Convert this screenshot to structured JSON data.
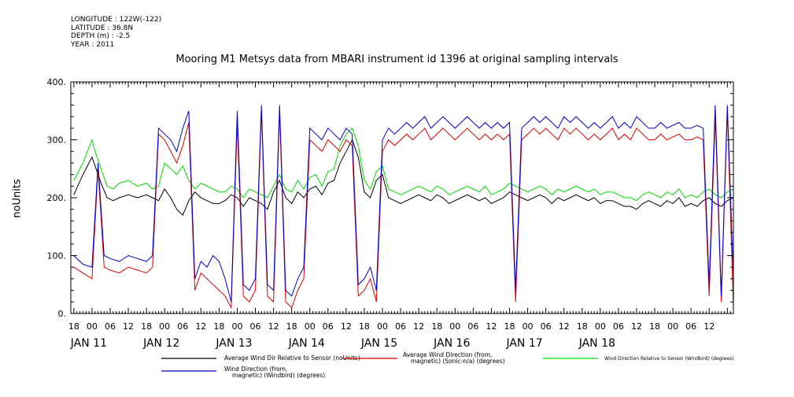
{
  "meta": {
    "longitude": "LONGITUDE : 122W(-122)",
    "latitude": "LATITUDE : 36.8N",
    "depth": "DEPTH (m) : -2.5",
    "year": "YEAR : 2011"
  },
  "colors": {
    "black": "#000000",
    "red": "#dd0000",
    "green": "#00dd00",
    "blue": "#0000cc"
  },
  "chart_data": {
    "type": "line",
    "title": "Mooring M1 Metsys data from MBARI instrument id 1396 at original sampling intervals",
    "xlabel": "",
    "ylabel": "noUnits",
    "ylim": [
      0,
      400
    ],
    "yticks": [
      "0.",
      "100.",
      "200.",
      "300.",
      "400."
    ],
    "x_unit": "hours from JAN 11 00:00",
    "xlim": [
      -7,
      212
    ],
    "hour_ticks": [
      "18",
      "00",
      "06",
      "12",
      "18",
      "00",
      "06",
      "12",
      "18",
      "00",
      "06",
      "12",
      "18",
      "00",
      "06",
      "12",
      "18",
      "00",
      "06",
      "12",
      "18",
      "00",
      "06",
      "12",
      "18",
      "00",
      "06",
      "12",
      "18",
      "00",
      "06",
      "12",
      "18",
      "00",
      "06",
      "12"
    ],
    "date_labels": [
      "JAN 11",
      "JAN 12",
      "JAN 13",
      "JAN 14",
      "JAN 15",
      "JAN 16",
      "JAN 17",
      "JAN 18"
    ],
    "grid": false,
    "legend_position": "bottom",
    "series": [
      {
        "name": "Average Wind Dir Relative to Sensor (noUnits)",
        "color": "#000000",
        "x": [
          -6,
          -3,
          0,
          1,
          3,
          5,
          7,
          9,
          12,
          15,
          18,
          20,
          22,
          24,
          26,
          28,
          30,
          32,
          34,
          36,
          38,
          40,
          42,
          44,
          46,
          48,
          50,
          52,
          54,
          56,
          58,
          60,
          62,
          64,
          66,
          68,
          70,
          72,
          74,
          76,
          78,
          80,
          82,
          84,
          86,
          88,
          90,
          92,
          94,
          96,
          98,
          100,
          102,
          104,
          106,
          108,
          110,
          112,
          114,
          116,
          118,
          120,
          122,
          124,
          126,
          128,
          130,
          132,
          134,
          136,
          138,
          140,
          142,
          144,
          146,
          148,
          150,
          152,
          154,
          156,
          158,
          160,
          162,
          164,
          166,
          168,
          170,
          172,
          174,
          176,
          178,
          180,
          182,
          184,
          186,
          188,
          190,
          192,
          194,
          196,
          198,
          200,
          202,
          204,
          206,
          208,
          210,
          212
        ],
        "y": [
          205,
          240,
          270,
          255,
          225,
          200,
          195,
          200,
          205,
          200,
          205,
          200,
          195,
          215,
          200,
          180,
          170,
          195,
          210,
          200,
          195,
          190,
          190,
          195,
          205,
          200,
          185,
          200,
          195,
          190,
          180,
          210,
          230,
          200,
          190,
          210,
          200,
          215,
          220,
          205,
          225,
          230,
          260,
          280,
          300,
          270,
          210,
          200,
          230,
          240,
          200,
          195,
          190,
          195,
          200,
          205,
          200,
          195,
          205,
          200,
          190,
          195,
          200,
          205,
          200,
          195,
          200,
          190,
          195,
          200,
          210,
          205,
          200,
          195,
          200,
          205,
          200,
          190,
          200,
          195,
          200,
          205,
          200,
          195,
          200,
          190,
          195,
          195,
          190,
          185,
          185,
          180,
          190,
          195,
          190,
          185,
          195,
          190,
          200,
          185,
          190,
          185,
          195,
          200,
          190,
          185,
          195,
          200
        ]
      },
      {
        "name": "Average Wind Direction (from, magnetic) (Sonic-n/a) (degrees)",
        "color": "#dd0000",
        "x": [
          -6,
          -3,
          0,
          2,
          4,
          6,
          9,
          12,
          15,
          18,
          20,
          22,
          24,
          26,
          28,
          30,
          32,
          34,
          36,
          38,
          40,
          42,
          44,
          46,
          48,
          50,
          52,
          54,
          56,
          58,
          60,
          62,
          64,
          66,
          68,
          70,
          72,
          74,
          76,
          78,
          80,
          82,
          84,
          86,
          88,
          90,
          92,
          94,
          96,
          98,
          100,
          102,
          104,
          106,
          108,
          110,
          112,
          114,
          116,
          118,
          120,
          122,
          124,
          126,
          128,
          130,
          132,
          134,
          136,
          138,
          140,
          142,
          144,
          146,
          148,
          150,
          152,
          154,
          156,
          158,
          160,
          162,
          164,
          166,
          168,
          170,
          172,
          174,
          176,
          178,
          180,
          182,
          184,
          186,
          188,
          190,
          192,
          194,
          196,
          198,
          200,
          202,
          204,
          206,
          208,
          210,
          212
        ],
        "y": [
          80,
          70,
          60,
          250,
          80,
          75,
          70,
          80,
          75,
          70,
          80,
          310,
          300,
          280,
          260,
          290,
          330,
          40,
          70,
          60,
          50,
          40,
          30,
          10,
          330,
          30,
          20,
          40,
          350,
          30,
          20,
          350,
          20,
          10,
          40,
          60,
          300,
          290,
          280,
          300,
          290,
          280,
          300,
          290,
          30,
          40,
          60,
          20,
          280,
          300,
          290,
          300,
          310,
          300,
          310,
          320,
          300,
          310,
          320,
          310,
          300,
          310,
          320,
          310,
          300,
          310,
          300,
          310,
          300,
          310,
          20,
          300,
          310,
          320,
          310,
          320,
          310,
          300,
          320,
          310,
          320,
          310,
          300,
          310,
          300,
          310,
          320,
          300,
          310,
          300,
          320,
          310,
          300,
          300,
          310,
          300,
          305,
          310,
          300,
          300,
          305,
          300,
          30,
          340,
          20,
          350,
          10
        ]
      },
      {
        "name": "Wind Direction Relative to Sensor (Windbird) (degrees)",
        "color": "#00dd00",
        "x": [
          -6,
          -3,
          0,
          1,
          3,
          5,
          7,
          9,
          12,
          15,
          18,
          20,
          22,
          24,
          26,
          28,
          30,
          32,
          34,
          36,
          38,
          40,
          42,
          44,
          46,
          48,
          50,
          52,
          54,
          56,
          58,
          60,
          62,
          64,
          66,
          68,
          70,
          72,
          74,
          76,
          78,
          80,
          82,
          84,
          86,
          88,
          90,
          92,
          94,
          96,
          98,
          100,
          102,
          104,
          106,
          108,
          110,
          112,
          114,
          116,
          118,
          120,
          122,
          124,
          126,
          128,
          130,
          132,
          134,
          136,
          138,
          140,
          142,
          144,
          146,
          148,
          150,
          152,
          154,
          156,
          158,
          160,
          162,
          164,
          166,
          168,
          170,
          172,
          174,
          176,
          178,
          180,
          182,
          184,
          186,
          188,
          190,
          192,
          194,
          196,
          198,
          200,
          202,
          204,
          206,
          208,
          210,
          212
        ],
        "y": [
          230,
          260,
          300,
          280,
          250,
          220,
          215,
          225,
          230,
          220,
          225,
          215,
          220,
          260,
          250,
          240,
          255,
          230,
          215,
          225,
          220,
          215,
          210,
          210,
          220,
          215,
          200,
          215,
          210,
          205,
          200,
          220,
          240,
          215,
          210,
          230,
          215,
          235,
          240,
          220,
          245,
          250,
          290,
          310,
          320,
          290,
          230,
          215,
          245,
          255,
          215,
          210,
          205,
          210,
          215,
          220,
          215,
          210,
          220,
          215,
          205,
          210,
          215,
          220,
          215,
          210,
          220,
          205,
          210,
          215,
          225,
          220,
          215,
          210,
          215,
          220,
          215,
          205,
          215,
          210,
          215,
          220,
          215,
          210,
          215,
          205,
          210,
          210,
          205,
          200,
          200,
          195,
          205,
          210,
          205,
          200,
          210,
          205,
          215,
          200,
          205,
          200,
          210,
          215,
          205,
          200,
          210,
          215
        ]
      },
      {
        "name": "Wind Direction (from, magnetic) (Windbird) (degrees)",
        "color": "#0000cc",
        "x": [
          -6,
          -3,
          0,
          2,
          4,
          6,
          9,
          12,
          15,
          18,
          20,
          22,
          24,
          26,
          28,
          30,
          32,
          34,
          36,
          38,
          40,
          42,
          44,
          46,
          48,
          50,
          52,
          54,
          56,
          58,
          60,
          62,
          64,
          66,
          68,
          70,
          72,
          74,
          76,
          78,
          80,
          82,
          84,
          86,
          88,
          90,
          92,
          94,
          96,
          98,
          100,
          102,
          104,
          106,
          108,
          110,
          112,
          114,
          116,
          118,
          120,
          122,
          124,
          126,
          128,
          130,
          132,
          134,
          136,
          138,
          140,
          142,
          144,
          146,
          148,
          150,
          152,
          154,
          156,
          158,
          160,
          162,
          164,
          166,
          168,
          170,
          172,
          174,
          176,
          178,
          180,
          182,
          184,
          186,
          188,
          190,
          192,
          194,
          196,
          198,
          200,
          202,
          204,
          206,
          208,
          210,
          212
        ],
        "y": [
          100,
          85,
          80,
          260,
          100,
          95,
          90,
          100,
          95,
          90,
          100,
          320,
          310,
          300,
          280,
          320,
          350,
          60,
          90,
          80,
          100,
          90,
          60,
          20,
          350,
          50,
          40,
          60,
          360,
          50,
          40,
          360,
          40,
          30,
          60,
          80,
          320,
          310,
          300,
          320,
          310,
          300,
          320,
          310,
          50,
          60,
          80,
          40,
          300,
          320,
          310,
          320,
          330,
          320,
          330,
          340,
          320,
          330,
          340,
          330,
          320,
          330,
          340,
          330,
          320,
          330,
          320,
          330,
          320,
          330,
          40,
          320,
          330,
          340,
          330,
          340,
          330,
          320,
          340,
          330,
          340,
          330,
          320,
          330,
          320,
          330,
          340,
          320,
          330,
          320,
          340,
          330,
          320,
          320,
          330,
          320,
          325,
          330,
          320,
          320,
          325,
          320,
          50,
          360,
          30,
          360,
          60
        ]
      }
    ]
  }
}
